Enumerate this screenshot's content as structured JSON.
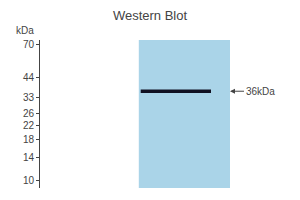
{
  "chart_data": {
    "type": "blot",
    "title": "Western Blot",
    "ylabel": "kDa",
    "log": "y",
    "ylim": [
      9,
      75
    ],
    "yticks": [
      70,
      44,
      33,
      26,
      22,
      18,
      14,
      10
    ],
    "values": [
      36
    ],
    "value_labels": [
      "36kDa"
    ],
    "data_labels": true,
    "band_height": 1.8,
    "color": "#111122",
    "gel_color": "#aad4e8",
    "grid": false
  }
}
